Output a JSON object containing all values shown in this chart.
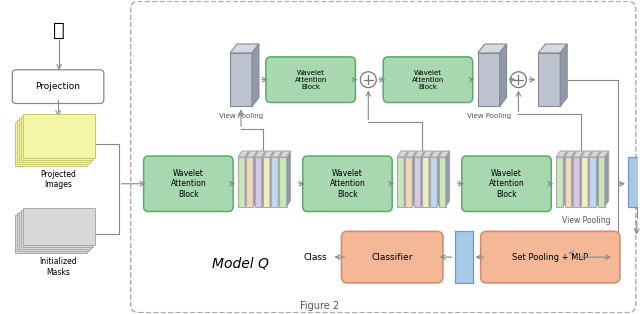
{
  "bg_color": "#ffffff",
  "wavelet_block_color": "#a8d8b0",
  "wavelet_block_border": "#5aaa6a",
  "set_pooling_color": "#f5b896",
  "classifier_color": "#f5b896",
  "blue_bar_color": "#a8c8e8",
  "blue_bar_border": "#7799bb",
  "gray_slab_color": "#bcc3ce",
  "gray_slab_top": "#d5d9e0",
  "gray_slab_side": "#9099a8",
  "arrow_color": "#888888",
  "dashed_border": "#aaaaaa",
  "model_q_label": "Model Q",
  "class_label": "Class",
  "view_pooling_label": "View Pooling",
  "labels": {
    "projection": "Projection",
    "projected_images": "Projected\nImages",
    "initialized_masks": "Initialized\nMasks",
    "wavelet_attention": "Wavelet\nAttention\nBlock",
    "set_pooling_mlp": "Set Pooling + MLP",
    "classifier": "Classifier"
  },
  "yellow_stack_color": "#f5f5a8",
  "yellow_stack_border": "#c8c870",
  "gray_stack_color": "#d8d8d8",
  "gray_stack_border": "#aaaaaa",
  "multicolor_slabs": [
    "#c8e8b8",
    "#eed8b8",
    "#d8c8e8",
    "#eeeec0",
    "#c0d8f0"
  ],
  "multicolor_border": "#aaaaaa"
}
